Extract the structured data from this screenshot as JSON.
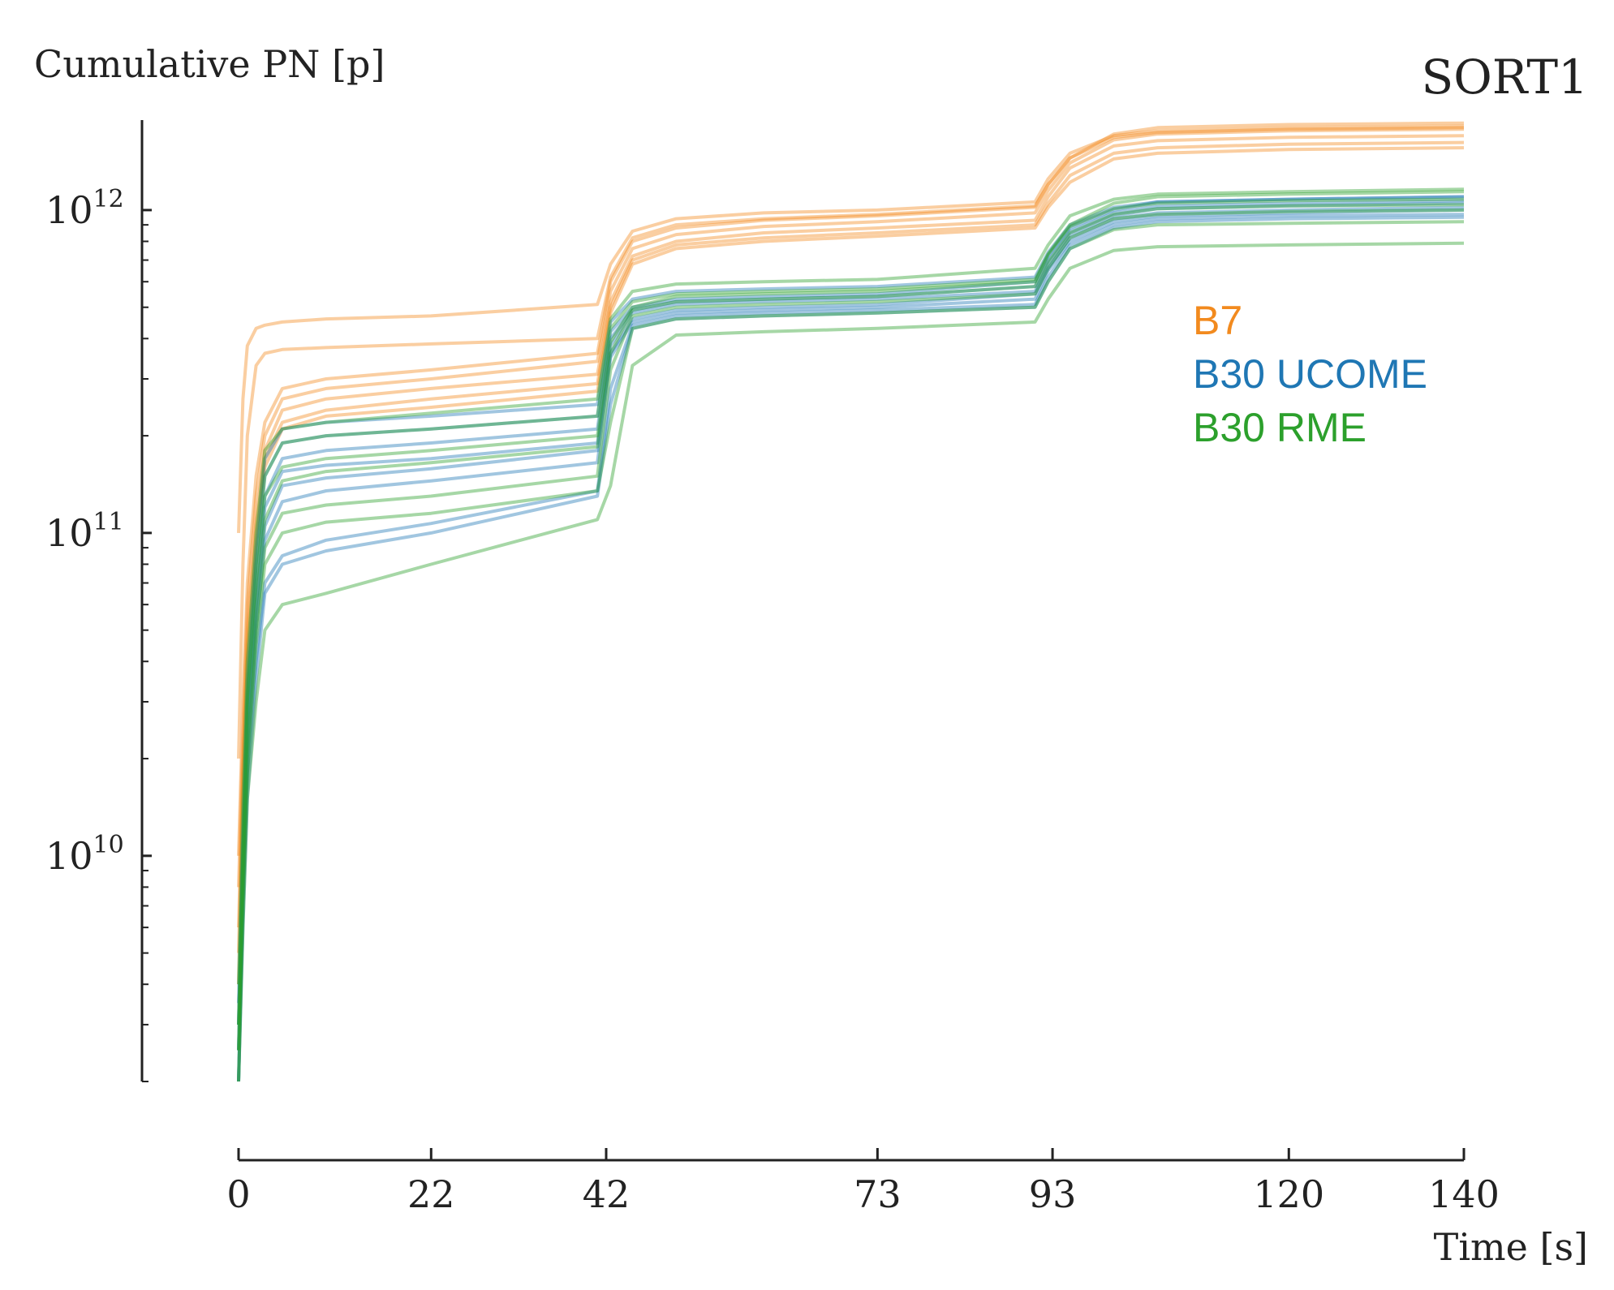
{
  "chart_data": {
    "type": "line",
    "title": "SORT1",
    "xlabel": "Time [s]",
    "ylabel": "Cumulative PN [p]",
    "y_scale": "log",
    "xlim": [
      0,
      140
    ],
    "ylim": [
      2000000000.0,
      1900000000000.0
    ],
    "x_ticks": [
      0,
      22,
      42,
      73,
      93,
      120,
      140
    ],
    "x_tick_labels": [
      "0",
      "22",
      "42",
      "73",
      "93",
      "120",
      "140"
    ],
    "y_ticks": [
      10000000000.0,
      100000000000.0,
      1000000000000.0
    ],
    "y_tick_labels": [
      {
        "base": "10",
        "exp": "10"
      },
      {
        "base": "10",
        "exp": "11"
      },
      {
        "base": "10",
        "exp": "12"
      }
    ],
    "grid": false,
    "legend_position": "right-middle",
    "x": [
      0,
      0.5,
      1,
      2,
      3,
      5,
      10,
      22,
      41,
      42.5,
      45,
      50,
      60,
      73,
      91,
      92.5,
      95,
      100,
      105,
      120,
      140
    ],
    "series": [
      {
        "name": "B7",
        "color": "#f28a1e",
        "runs": [
          [
            10000000000.0,
            30000000000.0,
            70000000000.0,
            150000000000.0,
            220000000000.0,
            280000000000.0,
            300000000000.0,
            320000000000.0,
            360000000000.0,
            600000000000.0,
            800000000000.0,
            880000000000.0,
            930000000000.0,
            960000000000.0,
            1020000000000.0,
            1200000000000.0,
            1450000000000.0,
            1720000000000.0,
            1800000000000.0,
            1840000000000.0,
            1860000000000.0
          ],
          [
            8000000000.0,
            25000000000.0,
            60000000000.0,
            130000000000.0,
            200000000000.0,
            260000000000.0,
            280000000000.0,
            300000000000.0,
            340000000000.0,
            560000000000.0,
            760000000000.0,
            840000000000.0,
            890000000000.0,
            920000000000.0,
            980000000000.0,
            1150000000000.0,
            1400000000000.0,
            1650000000000.0,
            1720000000000.0,
            1760000000000.0,
            1780000000000.0
          ],
          [
            6000000000.0,
            20000000000.0,
            50000000000.0,
            110000000000.0,
            180000000000.0,
            240000000000.0,
            260000000000.0,
            280000000000.0,
            310000000000.0,
            520000000000.0,
            720000000000.0,
            800000000000.0,
            850000000000.0,
            880000000000.0,
            930000000000.0,
            1100000000000.0,
            1350000000000.0,
            1580000000000.0,
            1640000000000.0,
            1680000000000.0,
            1700000000000.0
          ],
          [
            5000000000.0,
            18000000000.0,
            45000000000.0,
            100000000000.0,
            170000000000.0,
            220000000000.0,
            240000000000.0,
            260000000000.0,
            290000000000.0,
            500000000000.0,
            700000000000.0,
            780000000000.0,
            820000000000.0,
            850000000000.0,
            900000000000.0,
            1050000000000.0,
            1280000000000.0,
            1500000000000.0,
            1560000000000.0,
            1600000000000.0,
            1620000000000.0
          ],
          [
            4000000000.0,
            15000000000.0,
            40000000000.0,
            90000000000.0,
            160000000000.0,
            210000000000.0,
            230000000000.0,
            245000000000.0,
            275000000000.0,
            480000000000.0,
            680000000000.0,
            760000000000.0,
            800000000000.0,
            830000000000.0,
            880000000000.0,
            1020000000000.0,
            1220000000000.0,
            1440000000000.0,
            1500000000000.0,
            1540000000000.0,
            1560000000000.0
          ],
          [
            100000000000.0,
            260000000000.0,
            380000000000.0,
            430000000000.0,
            440000000000.0,
            450000000000.0,
            460000000000.0,
            470000000000.0,
            510000000000.0,
            680000000000.0,
            860000000000.0,
            940000000000.0,
            980000000000.0,
            1000000000000.0,
            1060000000000.0,
            1250000000000.0,
            1500000000000.0,
            1700000000000.0,
            1760000000000.0,
            1800000000000.0,
            1820000000000.0
          ],
          [
            20000000000.0,
            80000000000.0,
            200000000000.0,
            330000000000.0,
            360000000000.0,
            370000000000.0,
            375000000000.0,
            385000000000.0,
            400000000000.0,
            620000000000.0,
            820000000000.0,
            900000000000.0,
            940000000000.0,
            970000000000.0,
            1030000000000.0,
            1200000000000.0,
            1450000000000.0,
            1680000000000.0,
            1740000000000.0,
            1780000000000.0,
            1800000000000.0
          ]
        ]
      },
      {
        "name": "B30 UCOME",
        "color": "#1f77b4",
        "runs": [
          [
            3000000000.0,
            10000000000.0,
            30000000000.0,
            80000000000.0,
            150000000000.0,
            190000000000.0,
            200000000000.0,
            210000000000.0,
            230000000000.0,
            420000000000.0,
            500000000000.0,
            530000000000.0,
            540000000000.0,
            550000000000.0,
            600000000000.0,
            720000000000.0,
            880000000000.0,
            1000000000000.0,
            1060000000000.0,
            1080000000000.0,
            1100000000000.0
          ],
          [
            2500000000.0,
            9000000000.0,
            25000000000.0,
            60000000000.0,
            120000000000.0,
            155000000000.0,
            162000000000.0,
            170000000000.0,
            190000000000.0,
            380000000000.0,
            480000000000.0,
            510000000000.0,
            520000000000.0,
            530000000000.0,
            560000000000.0,
            680000000000.0,
            840000000000.0,
            960000000000.0,
            1010000000000.0,
            1030000000000.0,
            1050000000000.0
          ],
          [
            2000000000.0,
            7000000000.0,
            20000000000.0,
            50000000000.0,
            95000000000.0,
            125000000000.0,
            135000000000.0,
            145000000000.0,
            165000000000.0,
            350000000000.0,
            450000000000.0,
            480000000000.0,
            490000000000.0,
            500000000000.0,
            530000000000.0,
            650000000000.0,
            800000000000.0,
            920000000000.0,
            960000000000.0,
            980000000000.0,
            1000000000000.0
          ],
          [
            3000000000.0,
            10000000000.0,
            28000000000.0,
            70000000000.0,
            130000000000.0,
            170000000000.0,
            180000000000.0,
            190000000000.0,
            210000000000.0,
            400000000000.0,
            490000000000.0,
            520000000000.0,
            530000000000.0,
            540000000000.0,
            580000000000.0,
            700000000000.0,
            860000000000.0,
            980000000000.0,
            1030000000000.0,
            1050000000000.0,
            1070000000000.0
          ],
          [
            2000000000.0,
            6000000000.0,
            15000000000.0,
            35000000000.0,
            65000000000.0,
            80000000000.0,
            88000000000.0,
            100000000000.0,
            130000000000.0,
            250000000000.0,
            430000000000.0,
            460000000000.0,
            470000000000.0,
            480000000000.0,
            500000000000.0,
            600000000000.0,
            760000000000.0,
            880000000000.0,
            920000000000.0,
            940000000000.0,
            950000000000.0
          ],
          [
            2500000000.0,
            7000000000.0,
            18000000000.0,
            40000000000.0,
            70000000000.0,
            85000000000.0,
            95000000000.0,
            107000000000.0,
            135000000000.0,
            280000000000.0,
            440000000000.0,
            470000000000.0,
            480000000000.0,
            490000000000.0,
            510000000000.0,
            620000000000.0,
            780000000000.0,
            900000000000.0,
            940000000000.0,
            960000000000.0,
            970000000000.0
          ],
          [
            3500000000.0,
            12000000000.0,
            35000000000.0,
            90000000000.0,
            170000000000.0,
            210000000000.0,
            220000000000.0,
            230000000000.0,
            250000000000.0,
            450000000000.0,
            530000000000.0,
            560000000000.0,
            570000000000.0,
            580000000000.0,
            620000000000.0,
            740000000000.0,
            900000000000.0,
            1020000000000.0,
            1060000000000.0,
            1080000000000.0,
            1100000000000.0
          ],
          [
            2000000000.0,
            8000000000.0,
            22000000000.0,
            55000000000.0,
            105000000000.0,
            140000000000.0,
            148000000000.0,
            158000000000.0,
            180000000000.0,
            360000000000.0,
            460000000000.0,
            490000000000.0,
            500000000000.0,
            510000000000.0,
            550000000000.0,
            660000000000.0,
            820000000000.0,
            940000000000.0,
            980000000000.0,
            1000000000000.0,
            1020000000000.0
          ]
        ]
      },
      {
        "name": "B30 RME",
        "color": "#2ca02c",
        "runs": [
          [
            2000000000.0,
            6000000000.0,
            15000000000.0,
            30000000000.0,
            50000000000.0,
            60000000000.0,
            65000000000.0,
            80000000000.0,
            110000000000.0,
            140000000000.0,
            330000000000.0,
            410000000000.0,
            420000000000.0,
            430000000000.0,
            450000000000.0,
            530000000000.0,
            660000000000.0,
            750000000000.0,
            770000000000.0,
            780000000000.0,
            790000000000.0
          ],
          [
            3000000000.0,
            10000000000.0,
            30000000000.0,
            70000000000.0,
            130000000000.0,
            160000000000.0,
            170000000000.0,
            180000000000.0,
            200000000000.0,
            390000000000.0,
            500000000000.0,
            540000000000.0,
            550000000000.0,
            560000000000.0,
            600000000000.0,
            730000000000.0,
            900000000000.0,
            1050000000000.0,
            1100000000000.0,
            1120000000000.0,
            1140000000000.0
          ],
          [
            2500000000.0,
            8000000000.0,
            20000000000.0,
            50000000000.0,
            90000000000.0,
            115000000000.0,
            122000000000.0,
            130000000000.0,
            150000000000.0,
            320000000000.0,
            470000000000.0,
            500000000000.0,
            510000000000.0,
            520000000000.0,
            550000000000.0,
            660000000000.0,
            820000000000.0,
            940000000000.0,
            970000000000.0,
            990000000000.0,
            1000000000000.0
          ],
          [
            3000000000.0,
            11000000000.0,
            32000000000.0,
            80000000000.0,
            150000000000.0,
            190000000000.0,
            200000000000.0,
            210000000000.0,
            230000000000.0,
            430000000000.0,
            520000000000.0,
            550000000000.0,
            560000000000.0,
            570000000000.0,
            610000000000.0,
            730000000000.0,
            890000000000.0,
            1010000000000.0,
            1050000000000.0,
            1070000000000.0,
            1080000000000.0
          ],
          [
            2000000000.0,
            7000000000.0,
            18000000000.0,
            45000000000.0,
            80000000000.0,
            100000000000.0,
            108000000000.0,
            115000000000.0,
            135000000000.0,
            220000000000.0,
            430000000000.0,
            460000000000.0,
            470000000000.0,
            480000000000.0,
            500000000000.0,
            600000000000.0,
            760000000000.0,
            870000000000.0,
            900000000000.0,
            910000000000.0,
            920000000000.0
          ],
          [
            4000000000.0,
            15000000000.0,
            40000000000.0,
            100000000000.0,
            180000000000.0,
            210000000000.0,
            220000000000.0,
            235000000000.0,
            260000000000.0,
            460000000000.0,
            560000000000.0,
            590000000000.0,
            600000000000.0,
            610000000000.0,
            660000000000.0,
            780000000000.0,
            960000000000.0,
            1080000000000.0,
            1120000000000.0,
            1140000000000.0,
            1160000000000.0
          ],
          [
            2500000000.0,
            9000000000.0,
            25000000000.0,
            60000000000.0,
            110000000000.0,
            145000000000.0,
            155000000000.0,
            165000000000.0,
            185000000000.0,
            360000000000.0,
            490000000000.0,
            520000000000.0,
            530000000000.0,
            540000000000.0,
            580000000000.0,
            690000000000.0,
            850000000000.0,
            970000000000.0,
            1010000000000.0,
            1030000000000.0,
            1040000000000.0
          ]
        ]
      }
    ]
  },
  "legend": {
    "items": [
      {
        "label": "B7",
        "color": "#f28a1e"
      },
      {
        "label": "B30 UCOME",
        "color": "#1f77b4"
      },
      {
        "label": "B30 RME",
        "color": "#2ca02c"
      }
    ]
  }
}
